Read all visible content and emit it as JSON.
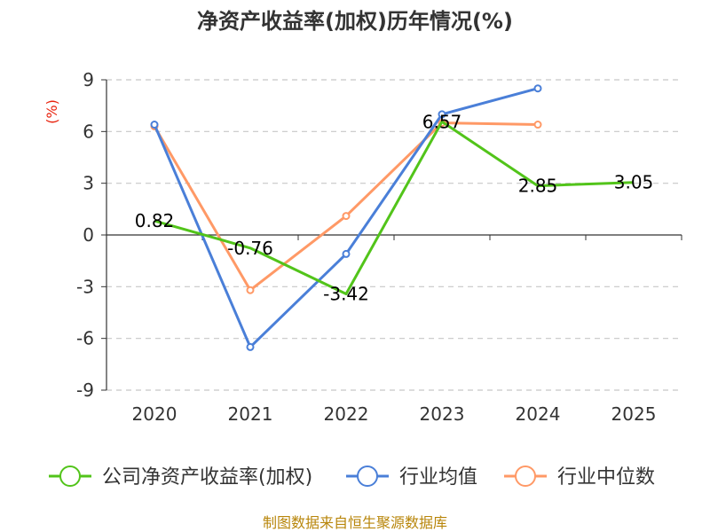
{
  "chart_data": {
    "type": "line",
    "title": "净资产收益率(加权)历年情况(%)",
    "ylabel": "(%)",
    "xlabel": "",
    "ylim": [
      -9,
      9
    ],
    "yticks": [
      9,
      6,
      3,
      0,
      -3,
      -6,
      -9
    ],
    "categories": [
      "2020",
      "2021",
      "2022",
      "2023",
      "2024",
      "2025"
    ],
    "series": [
      {
        "name": "公司净资产收益率(加权)",
        "color": "#52c41a",
        "values": [
          0.82,
          -0.76,
          -3.42,
          6.57,
          2.85,
          3.05
        ],
        "labels": [
          "0.82",
          "-0.76",
          "-3.42",
          "6.57",
          "2.85",
          "3.05"
        ]
      },
      {
        "name": "行业均值",
        "color": "#4a7fd8",
        "values": [
          6.4,
          -6.5,
          -1.1,
          7.0,
          8.5,
          null
        ]
      },
      {
        "name": "行业中位数",
        "color": "#ff9966",
        "values": [
          6.3,
          -3.2,
          1.1,
          6.5,
          6.4,
          null
        ]
      }
    ],
    "source": "制图数据来自恒生聚源数据库"
  }
}
